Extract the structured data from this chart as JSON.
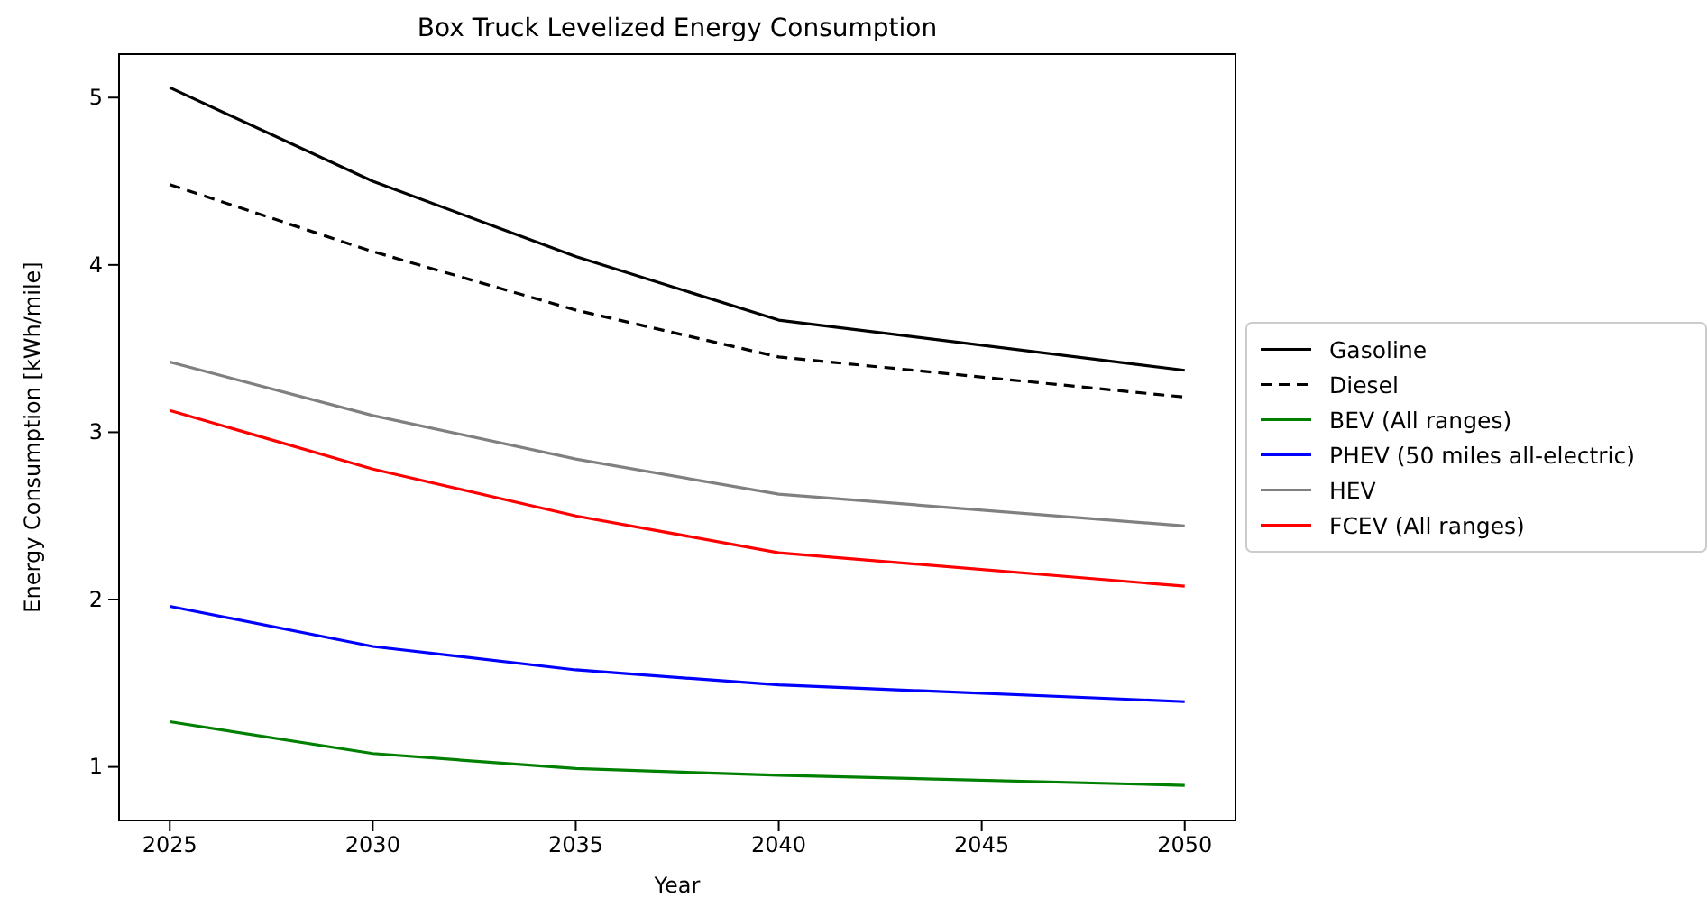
{
  "chart_data": {
    "type": "line",
    "title": "Box Truck Levelized Energy Consumption",
    "xlabel": "Year",
    "ylabel": "Energy Consumption [kWh/mile]",
    "x": [
      2025,
      2030,
      2035,
      2040,
      2050
    ],
    "xlim": [
      2023.75,
      2051.25
    ],
    "xticks": [
      2025,
      2030,
      2035,
      2040,
      2045,
      2050
    ],
    "ylim": [
      0.68,
      5.26
    ],
    "yticks": [
      1,
      2,
      3,
      4,
      5
    ],
    "legend": "right",
    "grid": false,
    "series": [
      {
        "name": "Gasoline",
        "color": "#000000",
        "values": [
          5.06,
          4.5,
          4.05,
          3.67,
          3.37
        ]
      },
      {
        "name": "Diesel",
        "color": "#000000",
        "line_style": "dashed",
        "values": [
          4.48,
          4.08,
          3.73,
          3.45,
          3.21
        ]
      },
      {
        "name": "BEV (All ranges)",
        "color": "#008000",
        "values": [
          1.27,
          1.08,
          0.99,
          0.95,
          0.89
        ]
      },
      {
        "name": "PHEV (50 miles all-electric)",
        "color": "#0000ff",
        "values": [
          1.96,
          1.72,
          1.58,
          1.49,
          1.39
        ]
      },
      {
        "name": "HEV",
        "color": "#808080",
        "values": [
          3.42,
          3.1,
          2.84,
          2.63,
          2.44
        ]
      },
      {
        "name": "FCEV (All ranges)",
        "color": "#ff0000",
        "values": [
          3.13,
          2.78,
          2.5,
          2.28,
          2.08
        ]
      }
    ]
  }
}
